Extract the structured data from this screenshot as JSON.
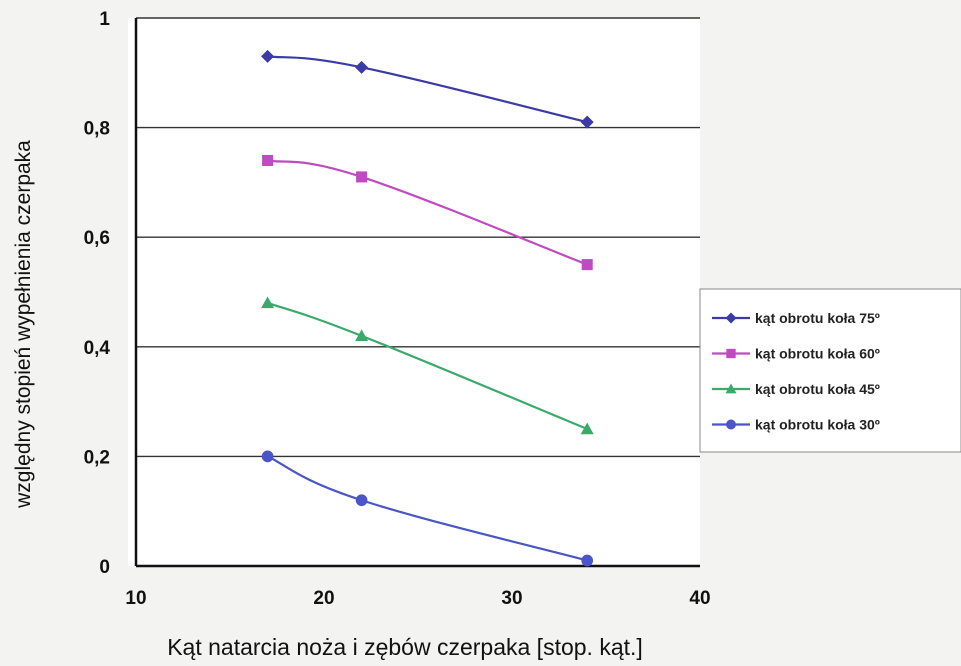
{
  "chart_data": {
    "type": "line",
    "xlabel": "Kąt natarcia noża i zębów czerpaka [stop. kąt.]",
    "ylabel": "względny stopień wypełnienia czerpaka",
    "xlim": [
      10,
      40
    ],
    "ylim": [
      0,
      1
    ],
    "x_ticks": [
      "10",
      "20",
      "30",
      "40"
    ],
    "y_ticks": [
      "0",
      "0,2",
      "0,4",
      "0,6",
      "0,8",
      "1"
    ],
    "grid": "horizontal",
    "legend_position": "right",
    "series": [
      {
        "name": "kąt obrotu koła 75º",
        "marker": "diamond",
        "color": "#3b3ba6",
        "x": [
          17,
          22,
          34
        ],
        "y": [
          0.93,
          0.91,
          0.81
        ]
      },
      {
        "name": "kąt obrotu koła 60º",
        "marker": "square",
        "color": "#c04bc0",
        "x": [
          17,
          22,
          34
        ],
        "y": [
          0.74,
          0.71,
          0.55
        ]
      },
      {
        "name": "kąt obrotu koła 45º",
        "marker": "triangle",
        "color": "#3aaa6a",
        "x": [
          17,
          22,
          34
        ],
        "y": [
          0.48,
          0.42,
          0.25
        ]
      },
      {
        "name": "kąt obrotu koła 30º",
        "marker": "circle",
        "color": "#4a55c8",
        "x": [
          17,
          22,
          34
        ],
        "y": [
          0.2,
          0.12,
          0.01
        ]
      }
    ]
  }
}
